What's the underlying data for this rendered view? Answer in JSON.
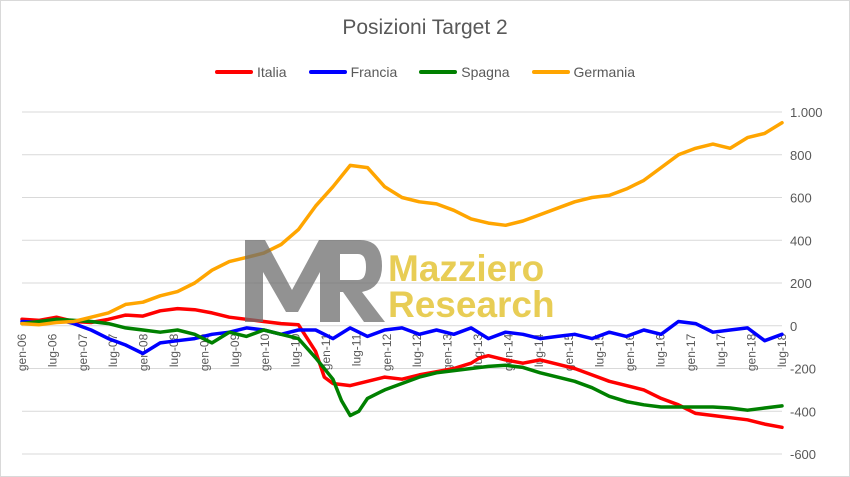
{
  "chart_data": {
    "type": "line",
    "title": "Posizioni Target 2",
    "xlabel": "",
    "ylabel": "",
    "ylim": [
      -600,
      1000
    ],
    "yticks": [
      1000,
      800,
      600,
      400,
      200,
      0,
      -200,
      -400,
      -600
    ],
    "ytick_labels": [
      "1.000",
      "800",
      "600",
      "400",
      "200",
      "0",
      "-200",
      "-400",
      "-600"
    ],
    "x_tick_labels": [
      "gen-06",
      "lug-06",
      "gen-07",
      "lug-07",
      "gen-08",
      "lug-08",
      "gen-09",
      "lug-09",
      "gen-10",
      "lug-10",
      "gen-11",
      "lug-11",
      "gen-12",
      "lug-12",
      "gen-13",
      "lug-13",
      "gen-14",
      "lug-14",
      "gen-15",
      "lug-15",
      "gen-16",
      "lug-16",
      "gen-17",
      "lug-17",
      "gen-18",
      "lug-18"
    ],
    "grid": true,
    "legend": "top",
    "series": [
      {
        "name": "Italia",
        "color": "#ff0000",
        "points": [
          [
            0,
            30
          ],
          [
            1,
            25
          ],
          [
            2,
            40
          ],
          [
            3,
            20
          ],
          [
            4,
            15
          ],
          [
            5,
            30
          ],
          [
            6,
            50
          ],
          [
            7,
            45
          ],
          [
            8,
            70
          ],
          [
            9,
            80
          ],
          [
            10,
            75
          ],
          [
            11,
            60
          ],
          [
            12,
            40
          ],
          [
            13,
            30
          ],
          [
            14,
            20
          ],
          [
            15,
            10
          ],
          [
            16,
            5
          ],
          [
            17,
            -120
          ],
          [
            17.5,
            -240
          ],
          [
            18,
            -270
          ],
          [
            19,
            -280
          ],
          [
            20,
            -260
          ],
          [
            21,
            -240
          ],
          [
            22,
            -250
          ],
          [
            23,
            -230
          ],
          [
            24,
            -215
          ],
          [
            25,
            -200
          ],
          [
            26,
            -175
          ],
          [
            26.5,
            -150
          ],
          [
            27,
            -140
          ],
          [
            28,
            -160
          ],
          [
            29,
            -175
          ],
          [
            30,
            -160
          ],
          [
            31,
            -180
          ],
          [
            32,
            -200
          ],
          [
            33,
            -230
          ],
          [
            34,
            -260
          ],
          [
            35,
            -280
          ],
          [
            36,
            -300
          ],
          [
            37,
            -340
          ],
          [
            38,
            -370
          ],
          [
            39,
            -410
          ],
          [
            40,
            -420
          ],
          [
            41,
            -430
          ],
          [
            42,
            -440
          ],
          [
            43,
            -460
          ],
          [
            44,
            -475
          ]
        ]
      },
      {
        "name": "Francia",
        "color": "#0000ff",
        "points": [
          [
            0,
            20
          ],
          [
            1,
            15
          ],
          [
            2,
            30
          ],
          [
            3,
            10
          ],
          [
            4,
            -20
          ],
          [
            5,
            -60
          ],
          [
            6,
            -90
          ],
          [
            7,
            -130
          ],
          [
            8,
            -80
          ],
          [
            9,
            -70
          ],
          [
            10,
            -60
          ],
          [
            11,
            -40
          ],
          [
            12,
            -30
          ],
          [
            13,
            -10
          ],
          [
            14,
            -20
          ],
          [
            15,
            -40
          ],
          [
            16,
            -20
          ],
          [
            17,
            -20
          ],
          [
            18,
            -60
          ],
          [
            19,
            -10
          ],
          [
            20,
            -50
          ],
          [
            21,
            -20
          ],
          [
            22,
            -10
          ],
          [
            23,
            -40
          ],
          [
            24,
            -20
          ],
          [
            25,
            -40
          ],
          [
            26,
            -10
          ],
          [
            27,
            -60
          ],
          [
            28,
            -30
          ],
          [
            29,
            -40
          ],
          [
            30,
            -60
          ],
          [
            31,
            -50
          ],
          [
            32,
            -40
          ],
          [
            33,
            -60
          ],
          [
            34,
            -30
          ],
          [
            35,
            -50
          ],
          [
            36,
            -20
          ],
          [
            37,
            -40
          ],
          [
            38,
            20
          ],
          [
            39,
            10
          ],
          [
            40,
            -30
          ],
          [
            41,
            -20
          ],
          [
            42,
            -10
          ],
          [
            43,
            -70
          ],
          [
            44,
            -40
          ]
        ]
      },
      {
        "name": "Spagna",
        "color": "#008000",
        "points": [
          [
            0,
            10
          ],
          [
            1,
            20
          ],
          [
            2,
            30
          ],
          [
            3,
            25
          ],
          [
            4,
            20
          ],
          [
            5,
            10
          ],
          [
            6,
            -10
          ],
          [
            7,
            -20
          ],
          [
            8,
            -30
          ],
          [
            9,
            -20
          ],
          [
            10,
            -40
          ],
          [
            11,
            -80
          ],
          [
            12,
            -30
          ],
          [
            13,
            -50
          ],
          [
            14,
            -20
          ],
          [
            15,
            -40
          ],
          [
            16,
            -60
          ],
          [
            17,
            -150
          ],
          [
            18,
            -250
          ],
          [
            18.5,
            -350
          ],
          [
            19,
            -420
          ],
          [
            19.5,
            -400
          ],
          [
            20,
            -340
          ],
          [
            21,
            -300
          ],
          [
            22,
            -270
          ],
          [
            23,
            -240
          ],
          [
            24,
            -220
          ],
          [
            25,
            -210
          ],
          [
            26,
            -200
          ],
          [
            27,
            -190
          ],
          [
            28,
            -185
          ],
          [
            29,
            -195
          ],
          [
            30,
            -220
          ],
          [
            31,
            -240
          ],
          [
            32,
            -260
          ],
          [
            33,
            -290
          ],
          [
            34,
            -330
          ],
          [
            35,
            -355
          ],
          [
            36,
            -370
          ],
          [
            37,
            -380
          ],
          [
            38,
            -380
          ],
          [
            39,
            -380
          ],
          [
            40,
            -380
          ],
          [
            41,
            -385
          ],
          [
            42,
            -395
          ],
          [
            43,
            -385
          ],
          [
            44,
            -375
          ]
        ]
      },
      {
        "name": "Germania",
        "color": "#ffa500",
        "points": [
          [
            0,
            10
          ],
          [
            1,
            5
          ],
          [
            2,
            15
          ],
          [
            3,
            20
          ],
          [
            4,
            40
          ],
          [
            5,
            60
          ],
          [
            6,
            100
          ],
          [
            7,
            110
          ],
          [
            8,
            140
          ],
          [
            9,
            160
          ],
          [
            10,
            200
          ],
          [
            11,
            260
          ],
          [
            12,
            300
          ],
          [
            13,
            320
          ],
          [
            14,
            340
          ],
          [
            15,
            380
          ],
          [
            16,
            450
          ],
          [
            17,
            560
          ],
          [
            18,
            650
          ],
          [
            19,
            750
          ],
          [
            20,
            740
          ],
          [
            21,
            650
          ],
          [
            22,
            600
          ],
          [
            23,
            580
          ],
          [
            24,
            570
          ],
          [
            25,
            540
          ],
          [
            26,
            500
          ],
          [
            27,
            480
          ],
          [
            28,
            470
          ],
          [
            29,
            490
          ],
          [
            30,
            520
          ],
          [
            31,
            550
          ],
          [
            32,
            580
          ],
          [
            33,
            600
          ],
          [
            34,
            610
          ],
          [
            35,
            640
          ],
          [
            36,
            680
          ],
          [
            37,
            740
          ],
          [
            38,
            800
          ],
          [
            39,
            830
          ],
          [
            40,
            850
          ],
          [
            41,
            830
          ],
          [
            42,
            880
          ],
          [
            43,
            900
          ],
          [
            44,
            950
          ]
        ]
      }
    ]
  },
  "watermark": {
    "line1": "Mazziero",
    "line2": "Research",
    "color": "#e6c843"
  }
}
